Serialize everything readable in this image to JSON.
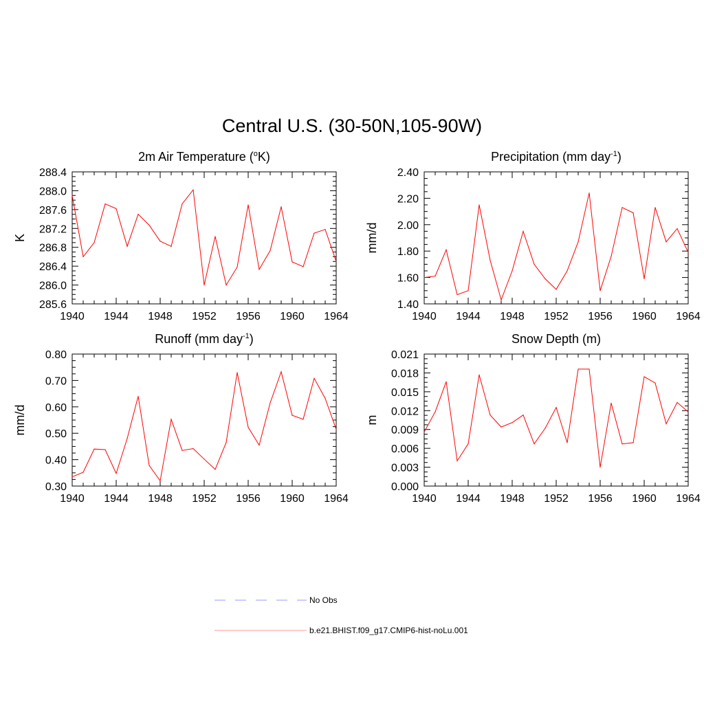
{
  "figure": {
    "title": "Central U.S. (30-50N,105-90W)"
  },
  "legend": {
    "items": [
      {
        "label": "No Obs",
        "color": "#9999ff",
        "style": "dashed"
      },
      {
        "label": "b.e21.BHIST.f09_g17.CMIP6-hist-noLu.001",
        "color": "#ff0000",
        "style": "solid"
      }
    ]
  },
  "chart_data": [
    {
      "type": "line",
      "title": "2m Air Temperature (°K)",
      "title_parts": {
        "main": "2m Air Temperature (",
        "sup": "o",
        "post": "K)"
      },
      "xlabel": "",
      "ylabel": "K",
      "xlim": [
        1940,
        1964
      ],
      "ylim": [
        285.6,
        288.4
      ],
      "x_ticks": [
        1940,
        1944,
        1948,
        1952,
        1956,
        1960,
        1964
      ],
      "y_ticks": [
        285.6,
        286.0,
        286.4,
        286.8,
        287.2,
        287.6,
        288.0,
        288.4
      ],
      "y_tick_labels": [
        "285.6",
        "286.0",
        "286.4",
        "286.8",
        "287.2",
        "287.6",
        "288.0",
        "288.4"
      ],
      "series": [
        {
          "name": "b.e21.BHIST.f09_g17.CMIP6-hist-noLu.001",
          "color": "#ff0000",
          "x": [
            1940,
            1941,
            1942,
            1943,
            1944,
            1945,
            1946,
            1947,
            1948,
            1949,
            1950,
            1951,
            1952,
            1953,
            1954,
            1955,
            1956,
            1957,
            1958,
            1959,
            1960,
            1961,
            1962,
            1963,
            1964
          ],
          "values": [
            287.9,
            286.6,
            286.9,
            287.72,
            287.62,
            286.82,
            287.5,
            287.27,
            286.93,
            286.82,
            287.72,
            288.02,
            286.0,
            287.03,
            286.0,
            286.38,
            287.7,
            286.33,
            286.73,
            287.66,
            286.49,
            286.39,
            287.1,
            287.18,
            286.5
          ]
        }
      ]
    },
    {
      "type": "line",
      "title": "Precipitation (mm day-1)",
      "title_parts": {
        "main": "Precipitation (mm day",
        "sup": "-1",
        "post": ")"
      },
      "xlabel": "",
      "ylabel": "mm/d",
      "xlim": [
        1940,
        1964
      ],
      "ylim": [
        1.4,
        2.4
      ],
      "x_ticks": [
        1940,
        1944,
        1948,
        1952,
        1956,
        1960,
        1964
      ],
      "y_ticks": [
        1.4,
        1.6,
        1.8,
        2.0,
        2.2,
        2.4
      ],
      "y_tick_labels": [
        "1.40",
        "1.60",
        "1.80",
        "2.00",
        "2.20",
        "2.40"
      ],
      "series": [
        {
          "name": "b.e21.BHIST.f09_g17.CMIP6-hist-noLu.001",
          "color": "#ff0000",
          "x": [
            1940,
            1941,
            1942,
            1943,
            1944,
            1945,
            1946,
            1947,
            1948,
            1949,
            1950,
            1951,
            1952,
            1953,
            1954,
            1955,
            1956,
            1957,
            1958,
            1959,
            1960,
            1961,
            1962,
            1963,
            1964
          ],
          "values": [
            1.6,
            1.61,
            1.81,
            1.47,
            1.5,
            2.15,
            1.73,
            1.43,
            1.65,
            1.95,
            1.7,
            1.59,
            1.51,
            1.65,
            1.87,
            2.24,
            1.5,
            1.76,
            2.13,
            2.09,
            1.59,
            2.13,
            1.87,
            1.97,
            1.79
          ]
        }
      ]
    },
    {
      "type": "line",
      "title": "Runoff (mm day-1)",
      "title_parts": {
        "main": "Runoff (mm day",
        "sup": "-1",
        "post": ")"
      },
      "xlabel": "",
      "ylabel": "mm/d",
      "xlim": [
        1940,
        1964
      ],
      "ylim": [
        0.3,
        0.8
      ],
      "x_ticks": [
        1940,
        1944,
        1948,
        1952,
        1956,
        1960,
        1964
      ],
      "y_ticks": [
        0.3,
        0.4,
        0.5,
        0.6,
        0.7,
        0.8
      ],
      "y_tick_labels": [
        "0.30",
        "0.40",
        "0.50",
        "0.60",
        "0.70",
        "0.80"
      ],
      "series": [
        {
          "name": "b.e21.BHIST.f09_g17.CMIP6-hist-noLu.001",
          "color": "#ff0000",
          "x": [
            1940,
            1941,
            1942,
            1943,
            1944,
            1945,
            1946,
            1947,
            1948,
            1949,
            1950,
            1951,
            1952,
            1953,
            1954,
            1955,
            1956,
            1957,
            1958,
            1959,
            1960,
            1961,
            1962,
            1963,
            1964
          ],
          "values": [
            0.335,
            0.352,
            0.44,
            0.438,
            0.348,
            0.48,
            0.64,
            0.378,
            0.32,
            0.553,
            0.435,
            0.442,
            0.402,
            0.363,
            0.465,
            0.73,
            0.523,
            0.455,
            0.615,
            0.733,
            0.568,
            0.553,
            0.708,
            0.632,
            0.515
          ]
        }
      ]
    },
    {
      "type": "line",
      "title": "Snow Depth (m)",
      "title_parts": {
        "main": "Snow Depth (m)",
        "sup": "",
        "post": ""
      },
      "xlabel": "",
      "ylabel": "m",
      "xlim": [
        1940,
        1964
      ],
      "ylim": [
        0.0,
        0.021
      ],
      "x_ticks": [
        1940,
        1944,
        1948,
        1952,
        1956,
        1960,
        1964
      ],
      "y_ticks": [
        0.0,
        0.003,
        0.006,
        0.009,
        0.012,
        0.015,
        0.018,
        0.021
      ],
      "y_tick_labels": [
        "0.000",
        "0.003",
        "0.006",
        "0.009",
        "0.012",
        "0.015",
        "0.018",
        "0.021"
      ],
      "series": [
        {
          "name": "b.e21.BHIST.f09_g17.CMIP6-hist-noLu.001",
          "color": "#ff0000",
          "x": [
            1940,
            1941,
            1942,
            1943,
            1944,
            1945,
            1946,
            1947,
            1948,
            1949,
            1950,
            1951,
            1952,
            1953,
            1954,
            1955,
            1956,
            1957,
            1958,
            1959,
            1960,
            1961,
            1962,
            1963,
            1964
          ],
          "values": [
            0.0086,
            0.0118,
            0.0166,
            0.004,
            0.0067,
            0.0177,
            0.0113,
            0.0094,
            0.0101,
            0.0113,
            0.0067,
            0.0092,
            0.0125,
            0.0069,
            0.0186,
            0.0186,
            0.003,
            0.0132,
            0.0067,
            0.0069,
            0.0174,
            0.0164,
            0.0099,
            0.0133,
            0.0118
          ]
        }
      ]
    }
  ]
}
